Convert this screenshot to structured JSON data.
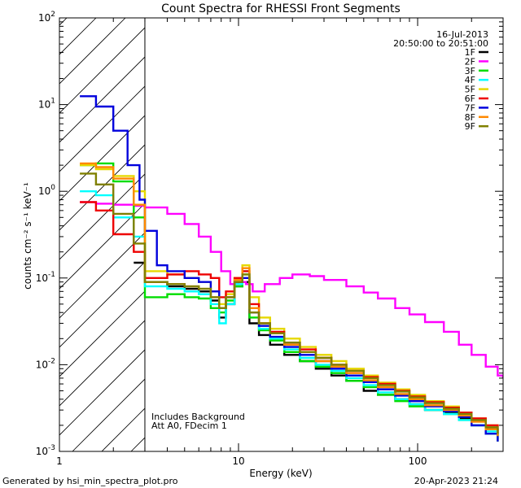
{
  "chart_data": {
    "type": "line",
    "title": "Count Spectra for RHESSI Front Segments",
    "xlabel": "Energy (keV)",
    "ylabel": "counts cm⁻² s⁻¹ keV⁻¹",
    "xscale": "log",
    "yscale": "log",
    "xlim": [
      1,
      300
    ],
    "ylim": [
      0.001,
      100
    ],
    "x_ticks": [
      {
        "value": 1,
        "label": "1"
      },
      {
        "value": 10,
        "label": "10"
      },
      {
        "value": 100,
        "label": "100"
      }
    ],
    "y_ticks": [
      {
        "value": 100,
        "mant": "10",
        "exp": "2"
      },
      {
        "value": 10,
        "mant": "10",
        "exp": "1"
      },
      {
        "value": 1,
        "mant": "10",
        "exp": "0"
      },
      {
        "value": 0.1,
        "mant": "10",
        "exp": "-1"
      },
      {
        "value": 0.01,
        "mant": "10",
        "exp": "-2"
      },
      {
        "value": 0.001,
        "mant": "10",
        "exp": "-3"
      }
    ],
    "date": "16-Jul-2013",
    "time_range": "20:50:00 to 20:51:00",
    "excluded_region": {
      "x_min": 1,
      "x_max": 3
    },
    "annotations": [
      "Includes Background",
      "Att A0, FDecim 1"
    ],
    "legend_position": "top-right",
    "series": [
      {
        "name": "1F",
        "color": "#000000",
        "points": [
          [
            2.6,
            0.15
          ],
          [
            3.0,
            0.09
          ],
          [
            4.0,
            0.08
          ],
          [
            5.0,
            0.075
          ],
          [
            6.0,
            0.07
          ],
          [
            7.0,
            0.055
          ],
          [
            7.8,
            0.035
          ],
          [
            8.5,
            0.05
          ],
          [
            9.5,
            0.08
          ],
          [
            10.5,
            0.09
          ],
          [
            11.5,
            0.03
          ],
          [
            13,
            0.022
          ],
          [
            15,
            0.017
          ],
          [
            18,
            0.013
          ],
          [
            22,
            0.011
          ],
          [
            27,
            0.009
          ],
          [
            33,
            0.0075
          ],
          [
            40,
            0.0065
          ],
          [
            50,
            0.005
          ],
          [
            60,
            0.0045
          ],
          [
            75,
            0.004
          ],
          [
            90,
            0.0035
          ],
          [
            110,
            0.003
          ],
          [
            140,
            0.0028
          ],
          [
            170,
            0.0024
          ],
          [
            200,
            0.002
          ],
          [
            240,
            0.0018
          ],
          [
            280,
            0.0015
          ]
        ]
      },
      {
        "name": "2F",
        "color": "#ff00ff",
        "points": [
          [
            1.3,
            0.75
          ],
          [
            1.6,
            0.72
          ],
          [
            2.0,
            0.7
          ],
          [
            2.6,
            0.68
          ],
          [
            3.0,
            0.65
          ],
          [
            4.0,
            0.55
          ],
          [
            5.0,
            0.42
          ],
          [
            6.0,
            0.3
          ],
          [
            7.0,
            0.2
          ],
          [
            8.0,
            0.12
          ],
          [
            9.0,
            0.085
          ],
          [
            10.0,
            0.09
          ],
          [
            11.0,
            0.085
          ],
          [
            12.0,
            0.07
          ],
          [
            14.0,
            0.085
          ],
          [
            17.0,
            0.1
          ],
          [
            20.0,
            0.11
          ],
          [
            25.0,
            0.105
          ],
          [
            30.0,
            0.095
          ],
          [
            40.0,
            0.08
          ],
          [
            50.0,
            0.068
          ],
          [
            60.0,
            0.058
          ],
          [
            75.0,
            0.045
          ],
          [
            90.0,
            0.038
          ],
          [
            110.0,
            0.031
          ],
          [
            140.0,
            0.024
          ],
          [
            170.0,
            0.017
          ],
          [
            200.0,
            0.013
          ],
          [
            240.0,
            0.0095
          ],
          [
            280.0,
            0.0075
          ],
          [
            300.0,
            0.007
          ]
        ]
      },
      {
        "name": "3F",
        "color": "#00dd00",
        "points": [
          [
            1.3,
            2.0
          ],
          [
            1.6,
            2.1
          ],
          [
            2.0,
            1.3
          ],
          [
            2.6,
            0.5
          ],
          [
            3.0,
            0.06
          ],
          [
            4.0,
            0.065
          ],
          [
            5.0,
            0.06
          ],
          [
            6.0,
            0.058
          ],
          [
            7.0,
            0.045
          ],
          [
            7.8,
            0.04
          ],
          [
            8.5,
            0.055
          ],
          [
            9.5,
            0.08
          ],
          [
            10.5,
            0.11
          ],
          [
            11.5,
            0.035
          ],
          [
            13,
            0.025
          ],
          [
            15,
            0.019
          ],
          [
            18,
            0.014
          ],
          [
            22,
            0.011
          ],
          [
            27,
            0.0095
          ],
          [
            33,
            0.008
          ],
          [
            40,
            0.0065
          ],
          [
            50,
            0.0055
          ],
          [
            60,
            0.0045
          ],
          [
            75,
            0.0038
          ],
          [
            90,
            0.0033
          ],
          [
            110,
            0.003
          ],
          [
            140,
            0.0027
          ],
          [
            170,
            0.0023
          ],
          [
            200,
            0.002
          ],
          [
            240,
            0.0016
          ],
          [
            280,
            0.0013
          ]
        ]
      },
      {
        "name": "4F",
        "color": "#00ffff",
        "points": [
          [
            1.3,
            1.0
          ],
          [
            1.6,
            0.9
          ],
          [
            2.0,
            0.5
          ],
          [
            2.6,
            0.3
          ],
          [
            3.0,
            0.08
          ],
          [
            4.0,
            0.075
          ],
          [
            5.0,
            0.07
          ],
          [
            6.0,
            0.065
          ],
          [
            7.0,
            0.05
          ],
          [
            7.8,
            0.03
          ],
          [
            8.5,
            0.05
          ],
          [
            9.5,
            0.085
          ],
          [
            10.5,
            0.12
          ],
          [
            11.5,
            0.04
          ],
          [
            13,
            0.026
          ],
          [
            15,
            0.02
          ],
          [
            18,
            0.015
          ],
          [
            22,
            0.012
          ],
          [
            27,
            0.01
          ],
          [
            33,
            0.0085
          ],
          [
            40,
            0.007
          ],
          [
            50,
            0.0058
          ],
          [
            60,
            0.0048
          ],
          [
            75,
            0.004
          ],
          [
            90,
            0.0035
          ],
          [
            110,
            0.003
          ],
          [
            140,
            0.0027
          ],
          [
            170,
            0.0023
          ],
          [
            200,
            0.002
          ],
          [
            240,
            0.0017
          ],
          [
            280,
            0.0014
          ]
        ]
      },
      {
        "name": "5F",
        "color": "#e6d800",
        "points": [
          [
            1.3,
            2.0
          ],
          [
            1.6,
            1.8
          ],
          [
            2.0,
            1.5
          ],
          [
            2.6,
            1.0
          ],
          [
            3.0,
            0.12
          ],
          [
            4.0,
            0.11
          ],
          [
            5.0,
            0.1
          ],
          [
            6.0,
            0.09
          ],
          [
            7.0,
            0.07
          ],
          [
            7.8,
            0.05
          ],
          [
            8.5,
            0.065
          ],
          [
            9.5,
            0.1
          ],
          [
            10.5,
            0.14
          ],
          [
            11.5,
            0.06
          ],
          [
            13,
            0.035
          ],
          [
            15,
            0.026
          ],
          [
            18,
            0.02
          ],
          [
            22,
            0.016
          ],
          [
            27,
            0.013
          ],
          [
            33,
            0.011
          ],
          [
            40,
            0.009
          ],
          [
            50,
            0.0075
          ],
          [
            60,
            0.0062
          ],
          [
            75,
            0.0052
          ],
          [
            90,
            0.0045
          ],
          [
            110,
            0.0038
          ],
          [
            140,
            0.0033
          ],
          [
            170,
            0.0028
          ],
          [
            200,
            0.0024
          ],
          [
            240,
            0.002
          ],
          [
            280,
            0.0017
          ]
        ]
      },
      {
        "name": "6F",
        "color": "#ee0000",
        "points": [
          [
            1.3,
            0.75
          ],
          [
            1.6,
            0.6
          ],
          [
            2.0,
            0.32
          ],
          [
            2.6,
            0.2
          ],
          [
            3.0,
            0.1
          ],
          [
            4.0,
            0.11
          ],
          [
            5.0,
            0.12
          ],
          [
            6.0,
            0.11
          ],
          [
            7.0,
            0.1
          ],
          [
            7.8,
            0.06
          ],
          [
            8.5,
            0.07
          ],
          [
            9.5,
            0.1
          ],
          [
            10.5,
            0.12
          ],
          [
            11.5,
            0.05
          ],
          [
            13,
            0.03
          ],
          [
            15,
            0.024
          ],
          [
            18,
            0.018
          ],
          [
            22,
            0.015
          ],
          [
            27,
            0.012
          ],
          [
            33,
            0.01
          ],
          [
            40,
            0.0085
          ],
          [
            50,
            0.0072
          ],
          [
            60,
            0.006
          ],
          [
            75,
            0.005
          ],
          [
            90,
            0.0043
          ],
          [
            110,
            0.0037
          ],
          [
            140,
            0.0032
          ],
          [
            170,
            0.0028
          ],
          [
            200,
            0.0024
          ],
          [
            240,
            0.002
          ],
          [
            280,
            0.0016
          ]
        ]
      },
      {
        "name": "7F",
        "color": "#0000dd",
        "points": [
          [
            1.3,
            12.5
          ],
          [
            1.6,
            9.5
          ],
          [
            2.0,
            5.0
          ],
          [
            2.4,
            2.0
          ],
          [
            2.8,
            0.8
          ],
          [
            3.0,
            0.35
          ],
          [
            3.5,
            0.14
          ],
          [
            4.0,
            0.12
          ],
          [
            5.0,
            0.1
          ],
          [
            6.0,
            0.09
          ],
          [
            7.0,
            0.07
          ],
          [
            7.8,
            0.045
          ],
          [
            8.5,
            0.06
          ],
          [
            9.5,
            0.09
          ],
          [
            10.5,
            0.1
          ],
          [
            11.5,
            0.04
          ],
          [
            13,
            0.028
          ],
          [
            15,
            0.021
          ],
          [
            18,
            0.016
          ],
          [
            22,
            0.013
          ],
          [
            27,
            0.011
          ],
          [
            33,
            0.009
          ],
          [
            40,
            0.0075
          ],
          [
            50,
            0.0063
          ],
          [
            60,
            0.0052
          ],
          [
            75,
            0.0044
          ],
          [
            90,
            0.0038
          ],
          [
            110,
            0.0033
          ],
          [
            140,
            0.0029
          ],
          [
            170,
            0.0025
          ],
          [
            200,
            0.002
          ],
          [
            240,
            0.0016
          ],
          [
            280,
            0.0013
          ]
        ]
      },
      {
        "name": "8F",
        "color": "#ff8800",
        "points": [
          [
            1.3,
            2.1
          ],
          [
            1.6,
            1.9
          ],
          [
            2.0,
            1.4
          ],
          [
            2.6,
            0.7
          ],
          [
            3.0,
            0.09
          ],
          [
            4.0,
            0.085
          ],
          [
            5.0,
            0.08
          ],
          [
            6.0,
            0.075
          ],
          [
            7.0,
            0.06
          ],
          [
            7.8,
            0.045
          ],
          [
            8.5,
            0.06
          ],
          [
            9.5,
            0.095
          ],
          [
            10.5,
            0.13
          ],
          [
            11.5,
            0.045
          ],
          [
            13,
            0.03
          ],
          [
            15,
            0.023
          ],
          [
            18,
            0.017
          ],
          [
            22,
            0.014
          ],
          [
            27,
            0.011
          ],
          [
            33,
            0.0095
          ],
          [
            40,
            0.008
          ],
          [
            50,
            0.0066
          ],
          [
            60,
            0.0055
          ],
          [
            75,
            0.0046
          ],
          [
            90,
            0.004
          ],
          [
            110,
            0.0034
          ],
          [
            140,
            0.003
          ],
          [
            170,
            0.0026
          ],
          [
            200,
            0.0022
          ],
          [
            240,
            0.0018
          ],
          [
            280,
            0.0015
          ]
        ]
      },
      {
        "name": "9F",
        "color": "#808000",
        "points": [
          [
            1.3,
            1.6
          ],
          [
            1.6,
            1.2
          ],
          [
            2.0,
            0.55
          ],
          [
            2.6,
            0.25
          ],
          [
            3.0,
            0.09
          ],
          [
            4.0,
            0.085
          ],
          [
            5.0,
            0.08
          ],
          [
            6.0,
            0.075
          ],
          [
            7.0,
            0.06
          ],
          [
            7.8,
            0.045
          ],
          [
            8.5,
            0.06
          ],
          [
            9.5,
            0.09
          ],
          [
            10.5,
            0.11
          ],
          [
            11.5,
            0.04
          ],
          [
            13,
            0.03
          ],
          [
            15,
            0.023
          ],
          [
            18,
            0.018
          ],
          [
            22,
            0.014
          ],
          [
            27,
            0.012
          ],
          [
            33,
            0.01
          ],
          [
            40,
            0.0085
          ],
          [
            50,
            0.007
          ],
          [
            60,
            0.0058
          ],
          [
            75,
            0.0049
          ],
          [
            90,
            0.0042
          ],
          [
            110,
            0.0036
          ],
          [
            140,
            0.0031
          ],
          [
            170,
            0.0027
          ],
          [
            200,
            0.0023
          ],
          [
            240,
            0.0019
          ],
          [
            280,
            0.0016
          ]
        ]
      }
    ]
  },
  "footer": {
    "generated_by": "Generated by hsi_min_spectra_plot.pro",
    "timestamp": "20-Apr-2023 21:24"
  }
}
